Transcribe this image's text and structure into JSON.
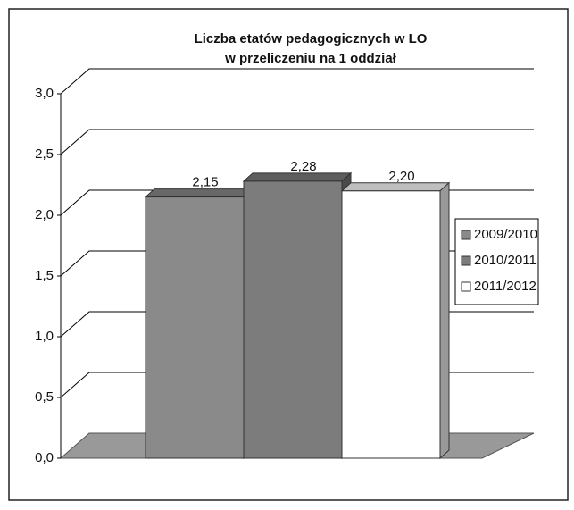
{
  "chart_data": {
    "type": "bar3d",
    "title_lines": [
      "Liczba etatów pedagogicznych w  LO",
      "w przeliczeniu na 1 oddział"
    ],
    "categories": [
      null
    ],
    "series": [
      {
        "name": "2009/2010",
        "color": "#8a8a8a",
        "values": [
          2.15
        ],
        "value_labels": [
          "2,15"
        ]
      },
      {
        "name": "2010/2011",
        "color": "#7c7c7c",
        "values": [
          2.28
        ],
        "value_labels": [
          "2,28"
        ]
      },
      {
        "name": "2011/2012",
        "color": "#ffffff",
        "values": [
          2.2
        ],
        "value_labels": [
          "2,20"
        ]
      }
    ],
    "ylim": [
      0,
      3
    ],
    "yticks": [
      {
        "value": 0,
        "label": "0,0"
      },
      {
        "value": 0.5,
        "label": "0,5"
      },
      {
        "value": 1,
        "label": "1,0"
      },
      {
        "value": 1.5,
        "label": "1,5"
      },
      {
        "value": 2,
        "label": "2,0"
      },
      {
        "value": 2.5,
        "label": "2,5"
      },
      {
        "value": 3,
        "label": "3,0"
      }
    ],
    "grid": true,
    "legend": "right"
  }
}
